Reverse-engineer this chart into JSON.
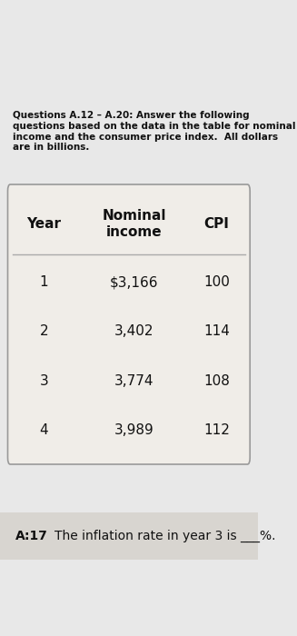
{
  "header_text": "Questions A.12 – A.20: Answer the following questions based on the data in the table for nominal income and the consumer price index.  All dollars are in billions.",
  "table_headers": [
    "Year",
    "Nominal\nincome",
    "CPI"
  ],
  "table_rows": [
    [
      "1",
      "$3,166",
      "100"
    ],
    [
      "2",
      "3,402",
      "114"
    ],
    [
      "3",
      "3,774",
      "108"
    ],
    [
      "4",
      "3,989",
      "112"
    ]
  ],
  "footer_label": "A:17",
  "footer_text": "The inflation rate in year 3 is ___%.",
  "bg_color": "#e8e8e8",
  "table_bg": "#f0ede8",
  "footer_bg": "#d8d5d0",
  "header_fontsize": 7.5,
  "table_header_fontsize": 11,
  "table_data_fontsize": 11,
  "footer_fontsize": 10
}
